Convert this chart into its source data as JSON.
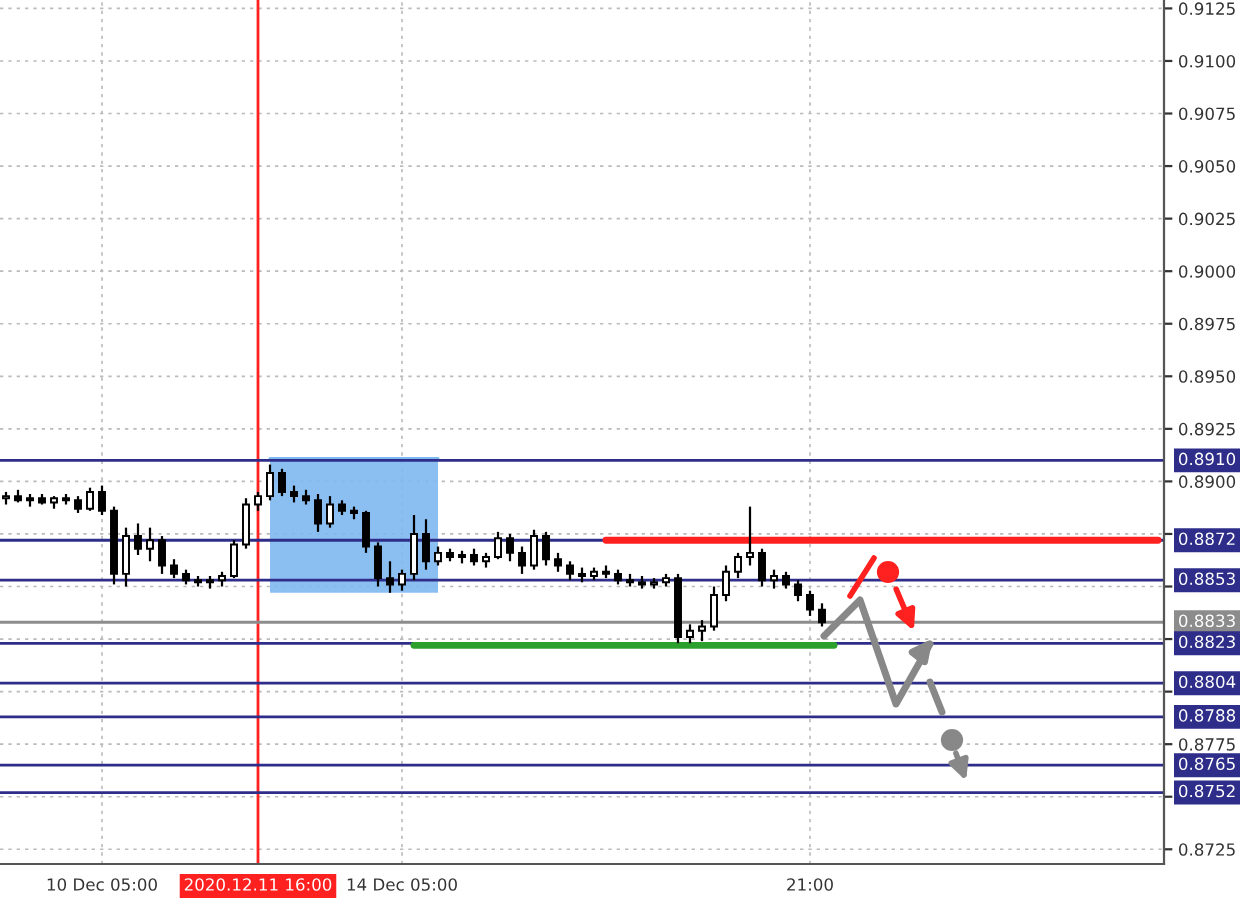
{
  "chart_data": {
    "type": "candlestick",
    "categories": [
      null,
      null,
      null,
      null,
      null,
      null,
      null,
      null,
      "10 Dec 05:00",
      null,
      null,
      null,
      null,
      null,
      null,
      null,
      null,
      null,
      null,
      null,
      null,
      "2020.12.11 16:00",
      null,
      null,
      null,
      null,
      null,
      null,
      null,
      null,
      null,
      null,
      null,
      "14 Dec 05:00",
      null,
      null,
      null,
      null,
      null,
      null,
      null,
      null,
      null,
      null,
      null,
      null,
      null,
      null,
      null,
      null,
      null,
      null,
      null,
      null,
      null,
      null,
      null,
      null,
      null,
      null,
      null,
      null,
      null,
      null,
      null,
      null,
      null,
      "21:00",
      null,
      null,
      null,
      null,
      null,
      null,
      null,
      null,
      null,
      null,
      null,
      null,
      null,
      null,
      null,
      null,
      null,
      null,
      null,
      null,
      null,
      null,
      null,
      null,
      null,
      null,
      null,
      null,
      null
    ],
    "series": [
      {
        "color": "#000000",
        "ohlc": [
          [
            0.8892,
            0.8895,
            0.8889,
            0.8893
          ],
          [
            0.8893,
            0.8896,
            0.889,
            0.8891
          ],
          [
            0.8891,
            0.8894,
            0.8888,
            0.8892
          ],
          [
            0.8892,
            0.8894,
            0.8889,
            0.889
          ],
          [
            0.889,
            0.8893,
            0.8887,
            0.8892
          ],
          [
            0.8892,
            0.8894,
            0.8889,
            0.8891
          ],
          [
            0.8891,
            0.8893,
            0.8885,
            0.8887
          ],
          [
            0.8887,
            0.8897,
            0.8886,
            0.8895
          ],
          [
            0.8895,
            0.8898,
            0.8884,
            0.8886
          ],
          [
            0.8886,
            0.8888,
            0.8851,
            0.8856
          ],
          [
            0.8856,
            0.8878,
            0.885,
            0.8874
          ],
          [
            0.8874,
            0.888,
            0.8865,
            0.8868
          ],
          [
            0.8868,
            0.8878,
            0.8862,
            0.8872
          ],
          [
            0.8872,
            0.8874,
            0.8856,
            0.886
          ],
          [
            0.886,
            0.8863,
            0.8854,
            0.8856
          ],
          [
            0.8856,
            0.8858,
            0.8851,
            0.8853
          ],
          [
            0.8853,
            0.8855,
            0.885,
            0.8852
          ],
          [
            0.8852,
            0.8855,
            0.8849,
            0.8853
          ],
          [
            0.8853,
            0.8857,
            0.885,
            0.8855
          ],
          [
            0.8855,
            0.8872,
            0.8854,
            0.887
          ],
          [
            0.887,
            0.8892,
            0.8868,
            0.8889
          ],
          [
            0.8889,
            0.8895,
            0.8886,
            0.8893
          ],
          [
            0.8893,
            0.8908,
            0.8891,
            0.8904
          ],
          [
            0.8904,
            0.8906,
            0.8893,
            0.8895
          ],
          [
            0.8895,
            0.8898,
            0.889,
            0.8893
          ],
          [
            0.8893,
            0.8896,
            0.8889,
            0.8891
          ],
          [
            0.8891,
            0.8894,
            0.8876,
            0.888
          ],
          [
            0.888,
            0.8893,
            0.8878,
            0.8889
          ],
          [
            0.8889,
            0.8891,
            0.8884,
            0.8886
          ],
          [
            0.8886,
            0.8888,
            0.8882,
            0.8885
          ],
          [
            0.8885,
            0.8886,
            0.8866,
            0.8869
          ],
          [
            0.8869,
            0.8871,
            0.885,
            0.8854
          ],
          [
            0.8854,
            0.8862,
            0.8847,
            0.8851
          ],
          [
            0.8851,
            0.8858,
            0.8848,
            0.8856
          ],
          [
            0.8856,
            0.8884,
            0.8853,
            0.8875
          ],
          [
            0.8875,
            0.8882,
            0.8858,
            0.8862
          ],
          [
            0.8862,
            0.8869,
            0.886,
            0.8866
          ],
          [
            0.8866,
            0.8868,
            0.8862,
            0.8864
          ],
          [
            0.8864,
            0.8867,
            0.8861,
            0.8865
          ],
          [
            0.8865,
            0.8868,
            0.886,
            0.8862
          ],
          [
            0.8862,
            0.8866,
            0.8859,
            0.8864
          ],
          [
            0.8864,
            0.8876,
            0.8863,
            0.8873
          ],
          [
            0.8873,
            0.8875,
            0.8862,
            0.8866
          ],
          [
            0.8866,
            0.8869,
            0.8856,
            0.886
          ],
          [
            0.886,
            0.8877,
            0.8858,
            0.8874
          ],
          [
            0.8874,
            0.8876,
            0.886,
            0.8863
          ],
          [
            0.8863,
            0.8866,
            0.8857,
            0.886
          ],
          [
            0.886,
            0.8862,
            0.8853,
            0.8856
          ],
          [
            0.8856,
            0.8859,
            0.8852,
            0.8855
          ],
          [
            0.8855,
            0.8859,
            0.8853,
            0.8857
          ],
          [
            0.8857,
            0.886,
            0.8854,
            0.8856
          ],
          [
            0.8856,
            0.8858,
            0.8851,
            0.8853
          ],
          [
            0.8853,
            0.8856,
            0.885,
            0.8852
          ],
          [
            0.8852,
            0.8855,
            0.8849,
            0.8851
          ],
          [
            0.8851,
            0.8854,
            0.8849,
            0.8852
          ],
          [
            0.8852,
            0.8856,
            0.885,
            0.8854
          ],
          [
            0.8854,
            0.8856,
            0.8823,
            0.8826
          ],
          [
            0.8826,
            0.8832,
            0.8823,
            0.8829
          ],
          [
            0.8829,
            0.8834,
            0.8824,
            0.8831
          ],
          [
            0.8831,
            0.885,
            0.8829,
            0.8846
          ],
          [
            0.8846,
            0.886,
            0.8843,
            0.8857
          ],
          [
            0.8857,
            0.8866,
            0.8854,
            0.8864
          ],
          [
            0.8864,
            0.8888,
            0.886,
            0.8866
          ],
          [
            0.8866,
            0.8868,
            0.885,
            0.8853
          ],
          [
            0.8853,
            0.8858,
            0.8849,
            0.8855
          ],
          [
            0.8855,
            0.8857,
            0.8849,
            0.8851
          ],
          [
            0.8851,
            0.8853,
            0.8843,
            0.8846
          ],
          [
            0.8846,
            0.8848,
            0.8836,
            0.8839
          ],
          [
            0.8839,
            0.8842,
            0.8831,
            0.8833
          ],
          null,
          null,
          null,
          null,
          null,
          null,
          null,
          null,
          null,
          null,
          null,
          null,
          null,
          null,
          null,
          null,
          null,
          null,
          null,
          null,
          null,
          null,
          null,
          null,
          null,
          null,
          null,
          null
        ]
      },
      {
        "type": "line",
        "color": "#7fb8f0",
        "upper": [
          null,
          null,
          null,
          null,
          null,
          null,
          null,
          null,
          null,
          null,
          null,
          null,
          null,
          null,
          null,
          null,
          null,
          null,
          null,
          null,
          null,
          null,
          0.8911,
          0.8911,
          0.8911,
          0.8911,
          0.8911,
          0.8911,
          0.8911,
          0.8911,
          0.8911,
          0.8911,
          0.8911,
          0.8911,
          0.8911,
          0.8911,
          0.8911,
          null,
          null,
          null,
          null,
          null,
          null,
          null,
          null,
          null,
          null,
          null,
          null,
          null,
          null,
          null,
          null,
          null,
          null,
          null,
          null,
          null,
          null,
          null,
          null,
          null,
          null,
          null,
          null,
          null,
          null,
          null,
          null,
          null,
          null,
          null,
          null,
          null,
          null,
          null,
          null,
          null,
          null,
          null,
          null,
          null,
          null,
          null,
          null,
          null,
          null,
          null,
          null,
          null,
          null,
          null,
          null,
          null,
          null,
          null,
          null
        ],
        "values": [
          null,
          null,
          null,
          null,
          null,
          null,
          null,
          null,
          null,
          null,
          null,
          null,
          null,
          null,
          null,
          null,
          null,
          null,
          null,
          null,
          null,
          null,
          0.8911,
          0.8911,
          0.8911,
          0.8911,
          0.8911,
          0.8911,
          0.8911,
          0.8911,
          0.8911,
          0.8911,
          0.8911,
          0.8911,
          0.8911,
          0.8911,
          0.8911,
          null,
          null,
          null,
          null,
          null,
          null,
          null,
          null,
          null,
          null,
          null,
          null,
          null,
          null,
          null,
          null,
          null,
          null,
          null,
          null,
          null,
          null,
          null,
          null,
          null,
          null,
          null,
          null,
          null,
          null,
          null,
          null,
          null,
          null,
          null,
          null,
          null,
          null,
          null,
          null,
          null,
          null,
          null,
          null,
          null,
          null,
          null,
          null,
          null,
          null,
          null,
          null,
          null,
          null,
          null,
          null,
          null,
          null,
          null,
          null
        ],
        "lower": [
          null,
          null,
          null,
          null,
          null,
          null,
          null,
          null,
          null,
          null,
          null,
          null,
          null,
          null,
          null,
          null,
          null,
          null,
          null,
          null,
          null,
          null,
          0.8847,
          0.8847,
          0.8847,
          0.8847,
          0.8847,
          0.8847,
          0.8847,
          0.8847,
          0.8847,
          0.8847,
          0.8847,
          0.8847,
          0.8847,
          0.8847,
          0.8847,
          null,
          null,
          null,
          null,
          null,
          null,
          null,
          null,
          null,
          null,
          null,
          null,
          null,
          null,
          null,
          null,
          null,
          null,
          null,
          null,
          null,
          null,
          null,
          null,
          null,
          null,
          null,
          null,
          null,
          null,
          null,
          null,
          null,
          null,
          null,
          null,
          null,
          null,
          null,
          null,
          null,
          null,
          null,
          null,
          null,
          null,
          null,
          null,
          null,
          null,
          null,
          null,
          null,
          null,
          null,
          null,
          null,
          null,
          null,
          null
        ]
      },
      {
        "type": "line",
        "color": "#ff2020",
        "values": [
          null,
          null,
          null,
          null,
          null,
          null,
          null,
          null,
          null,
          null,
          null,
          null,
          null,
          null,
          null,
          null,
          null,
          null,
          null,
          null,
          null,
          null,
          null,
          null,
          null,
          null,
          null,
          null,
          null,
          null,
          null,
          null,
          null,
          null,
          null,
          null,
          null,
          null,
          null,
          null,
          null,
          null,
          null,
          null,
          null,
          null,
          null,
          null,
          null,
          null,
          0.8872,
          0.8872,
          0.8872,
          0.8872,
          0.8872,
          0.8872,
          0.8872,
          0.8872,
          0.8872,
          0.8872,
          0.8872,
          0.8872,
          0.8872,
          0.8872,
          0.8872,
          0.8872,
          0.8872,
          0.8872,
          0.8872,
          0.8872,
          0.8872,
          0.8872,
          0.8872,
          0.8872,
          0.8872,
          0.8872,
          0.8872,
          0.8872,
          0.8872,
          0.8872,
          0.8872,
          0.8872,
          0.8872,
          0.8872,
          0.8872,
          0.8872,
          0.8872,
          0.8872,
          0.8872,
          0.8872,
          0.8872,
          0.8872,
          0.8872,
          0.8872,
          0.8872,
          0.8872,
          0.8872
        ]
      },
      {
        "type": "line",
        "color": "#2ca02c",
        "values": [
          null,
          null,
          null,
          null,
          null,
          null,
          null,
          null,
          null,
          null,
          null,
          null,
          null,
          null,
          null,
          null,
          null,
          null,
          null,
          null,
          null,
          null,
          null,
          null,
          null,
          null,
          null,
          null,
          null,
          null,
          null,
          null,
          null,
          null,
          0.8822,
          0.8822,
          0.8822,
          0.8822,
          0.8822,
          0.8822,
          0.8822,
          0.8822,
          0.8822,
          0.8822,
          0.8822,
          0.8822,
          0.8822,
          0.8822,
          0.8822,
          0.8822,
          0.8822,
          0.8822,
          0.8822,
          0.8822,
          0.8822,
          0.8822,
          0.8822,
          0.8822,
          0.8822,
          0.8822,
          0.8822,
          0.8822,
          0.8822,
          0.8822,
          0.8822,
          0.8822,
          0.8822,
          0.8822,
          0.8822,
          0.8822,
          null,
          null,
          null,
          null,
          null,
          null,
          null,
          null,
          null,
          null,
          null,
          null,
          null,
          null,
          null,
          null,
          null,
          null,
          null,
          null,
          null,
          null,
          null,
          null,
          null,
          null,
          null
        ]
      }
    ],
    "ylim": [
      0.8718,
      0.9129
    ],
    "yticks": [
      {
        "value": 0.8725,
        "label": "0.8725"
      },
      {
        "value": 0.875,
        "label": null
      },
      {
        "value": 0.8775,
        "label": "0.8775"
      },
      {
        "value": 0.88,
        "label": null
      },
      {
        "value": 0.8825,
        "label": null
      },
      {
        "value": 0.885,
        "label": null
      },
      {
        "value": 0.8875,
        "label": null
      },
      {
        "value": 0.89,
        "label": "0.8900"
      },
      {
        "value": 0.8925,
        "label": "0.8925"
      },
      {
        "value": 0.895,
        "label": "0.8950"
      },
      {
        "value": 0.8975,
        "label": "0.8975"
      },
      {
        "value": 0.9,
        "label": "0.9000"
      },
      {
        "value": 0.9025,
        "label": "0.9025"
      },
      {
        "value": 0.905,
        "label": "0.9050"
      },
      {
        "value": 0.9075,
        "label": "0.9075"
      },
      {
        "value": 0.91,
        "label": "0.9100"
      },
      {
        "value": 0.9125,
        "label": "0.9125"
      }
    ],
    "grid": true,
    "ref_lines": [
      {
        "axis": "x",
        "value": "2020.12.11 16:00",
        "color": "#ff2020"
      },
      {
        "axis": "y",
        "value": 0.891,
        "label": "0.8910",
        "color": "#2e2e8a"
      },
      {
        "axis": "y",
        "value": 0.8872,
        "label": "0.8872",
        "color": "#2e2e8a"
      },
      {
        "axis": "y",
        "value": 0.8853,
        "label": "0.8853",
        "color": "#2e2e8a"
      },
      {
        "axis": "y",
        "value": 0.8833,
        "label": "0.8833",
        "color": "#8c8c8c"
      },
      {
        "axis": "y",
        "value": 0.8823,
        "label": "0.8823",
        "color": "#2e2e8a"
      },
      {
        "axis": "y",
        "value": 0.8804,
        "label": "0.8804",
        "color": "#2e2e8a"
      },
      {
        "axis": "y",
        "value": 0.8788,
        "label": "0.8788",
        "color": "#2e2e8a"
      },
      {
        "axis": "y",
        "value": 0.8765,
        "label": "0.8765",
        "color": "#2e2e8a"
      },
      {
        "axis": "y",
        "value": 0.8752,
        "label": "0.8752",
        "color": "#2e2e8a"
      }
    ]
  }
}
